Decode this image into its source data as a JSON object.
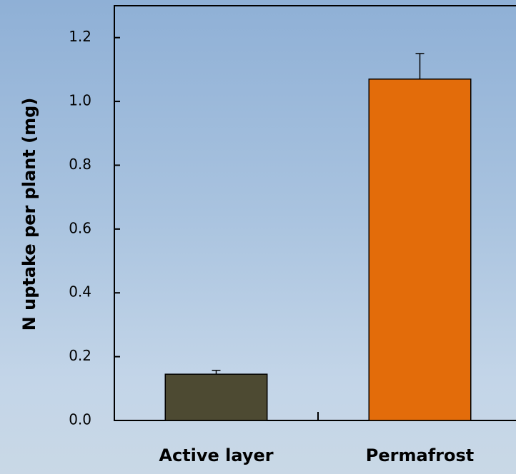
{
  "chart_data": {
    "type": "bar",
    "y_label": "N uptake per plant (mg)",
    "categories": [
      "Active layer",
      "Permafrost"
    ],
    "values": [
      0.145,
      1.07
    ],
    "errors": [
      0.012,
      0.08
    ],
    "colors": [
      "#4d4a32",
      "#e36c0a"
    ],
    "ylim": [
      0,
      1.3
    ],
    "yticks": [
      {
        "value": 0,
        "label": "0.0"
      },
      0.2,
      0.4,
      0.6,
      0.8,
      {
        "value": 1,
        "label": "1.0"
      },
      1.2
    ]
  }
}
